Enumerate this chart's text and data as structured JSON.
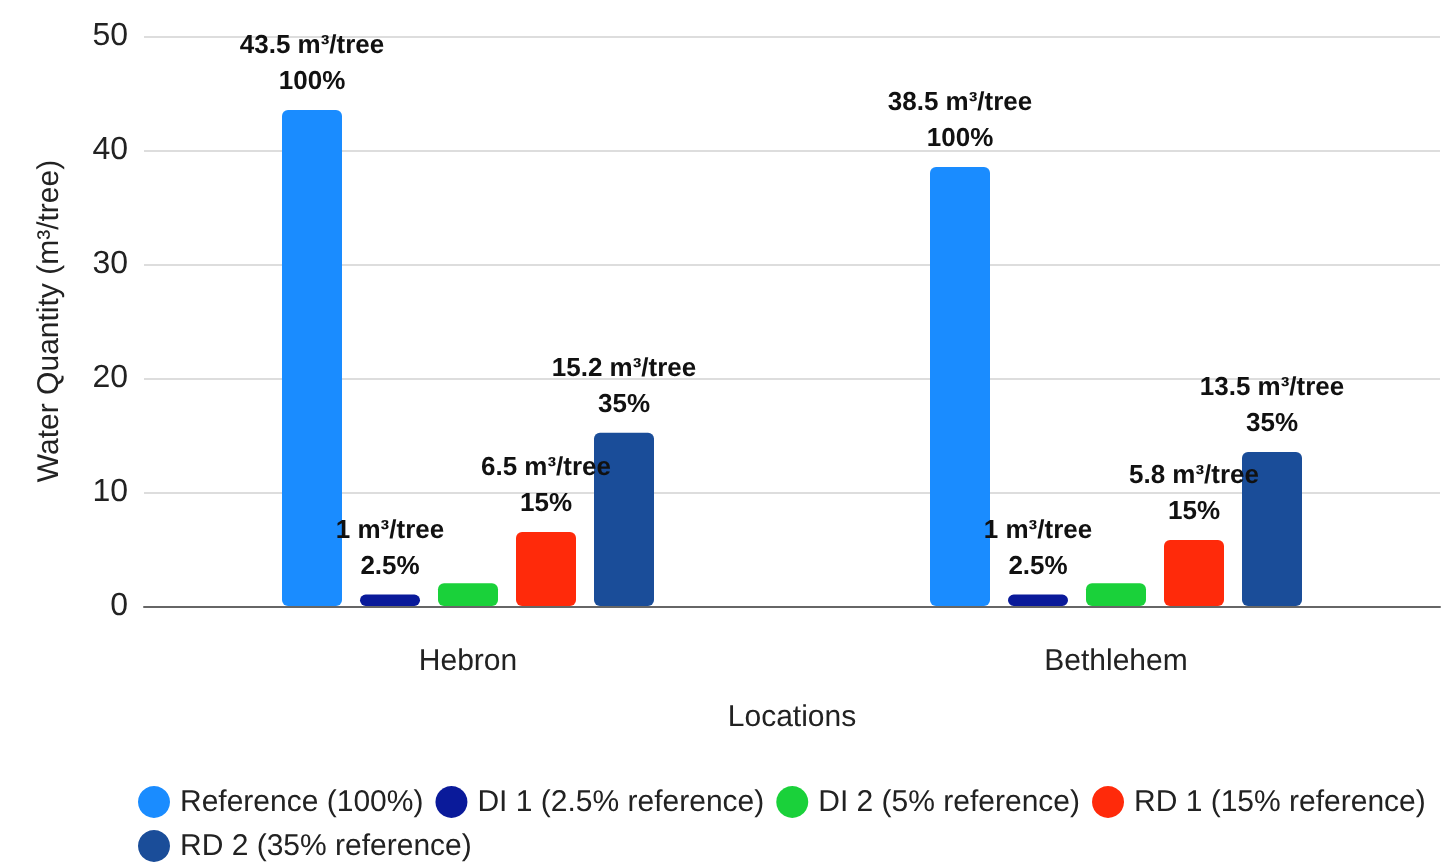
{
  "chart_data": {
    "type": "bar",
    "xlabel": "Locations",
    "ylabel": "Water Quantity (m³/tree)",
    "categories": [
      "Hebron",
      "Bethlehem"
    ],
    "series": [
      {
        "name": "Reference (100%)",
        "color": "#1a8cff",
        "values": [
          43.5,
          38.5
        ],
        "value_labels": [
          "43.5 m³/tree\n100%",
          "38.5 m³/tree\n100%"
        ]
      },
      {
        "name": "DI 1 (2.5% reference)",
        "color": "#0a1a9a",
        "values": [
          1,
          1
        ],
        "value_labels": [
          "1 m³/tree\n2.5%",
          "1 m³/tree\n2.5%"
        ]
      },
      {
        "name": "DI 2 (5% reference)",
        "color": "#1ad13a",
        "values": [
          2,
          2
        ]
      },
      {
        "name": "RD 1 (15% reference)",
        "color": "#ff2a0a",
        "values": [
          6.5,
          5.8
        ],
        "value_labels": [
          "6.5 m³/tree\n15%",
          "5.8 m³/tree\n15%"
        ]
      },
      {
        "name": "RD 2 (35% reference)",
        "color": "#1a4d99",
        "values": [
          15.2,
          13.5
        ],
        "value_labels": [
          "15.2 m³/tree\n35%",
          "13.5 m³/tree\n35%"
        ]
      }
    ],
    "ylim": [
      0,
      50
    ],
    "yticks": [
      0,
      10,
      20,
      30,
      40,
      50
    ],
    "grid": "y",
    "legend": "bottom"
  }
}
